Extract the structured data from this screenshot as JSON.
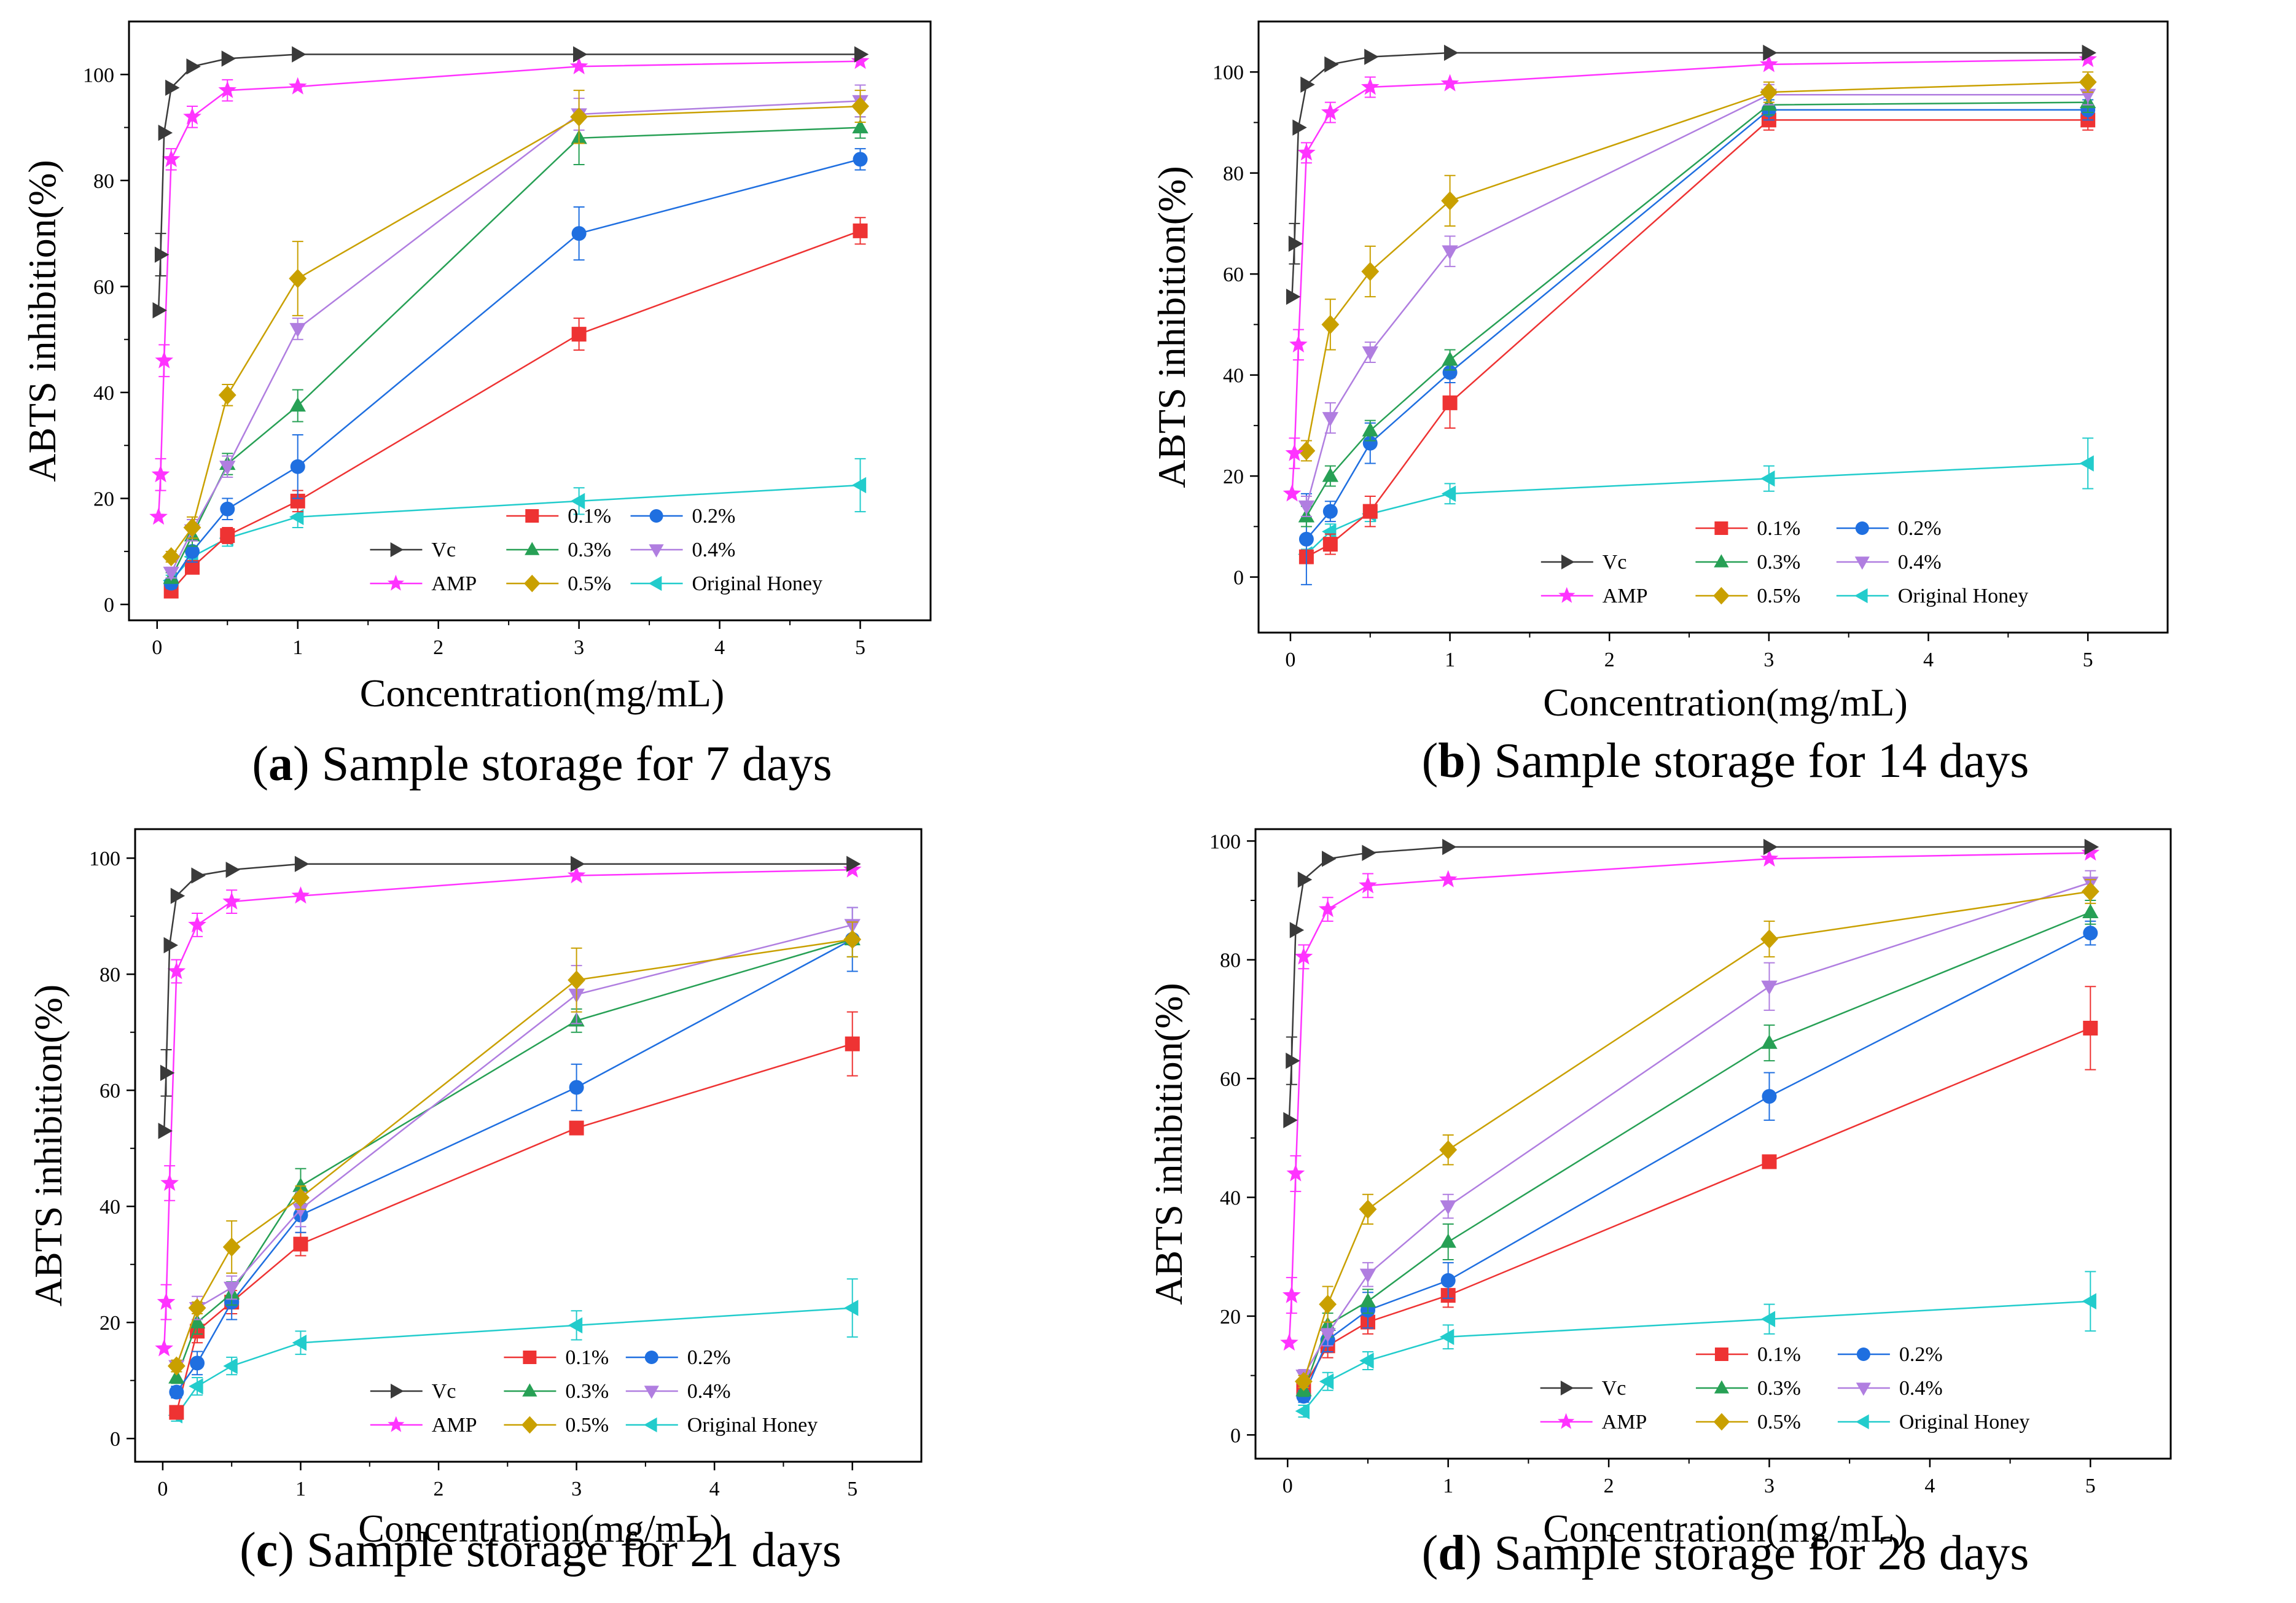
{
  "figure": {
    "legend_order": [
      {
        "label": "0.1%",
        "key": "s01"
      },
      {
        "label": "0.2%",
        "key": "s02"
      },
      {
        "label": "Vc",
        "key": "vc"
      },
      {
        "label": "0.3%",
        "key": "s03"
      },
      {
        "label": "0.4%",
        "key": "s04"
      },
      {
        "label": "AMP",
        "key": "amp"
      },
      {
        "label": "0.5%",
        "key": "s05"
      },
      {
        "label": "Original Honey",
        "key": "orig"
      }
    ],
    "series_colors": {
      "vc": "#3a3a3a",
      "amp": "#ff33ff",
      "s01": "#ee3333",
      "s02": "#1f6fe0",
      "s03": "#27a055",
      "s04": "#b07ee0",
      "s05": "#c9a000",
      "orig": "#22cccc"
    },
    "series_markers": {
      "vc": "triangle-right",
      "amp": "star",
      "s01": "square",
      "s02": "circle",
      "s03": "triangle-up",
      "s04": "triangle-down",
      "s05": "diamond",
      "orig": "triangle-left"
    }
  },
  "chart_data": [
    {
      "type": "line",
      "panel_letter": "a",
      "caption": "Sample storage for 7 days",
      "xlabel": "Concentration(mg/mL)",
      "ylabel": "ABTS inhibition(%)",
      "xlim": [
        -0.2,
        5.5
      ],
      "ylim": [
        -3,
        110
      ],
      "xticks": [
        0,
        1,
        2,
        3,
        4,
        5
      ],
      "yticks": [
        0,
        20,
        40,
        60,
        80,
        100
      ],
      "series": [
        {
          "key": "vc",
          "name": "Vc",
          "x": [
            0.01,
            0.025,
            0.05,
            0.1,
            0.25,
            0.5,
            1,
            3,
            5
          ],
          "y": [
            55.5,
            66,
            89,
            97.5,
            101.5,
            103,
            103.8,
            103.8,
            103.8
          ],
          "err": [
            0,
            4,
            0,
            0,
            0,
            0,
            0,
            0,
            0
          ]
        },
        {
          "key": "amp",
          "name": "AMP",
          "x": [
            0.01,
            0.025,
            0.05,
            0.1,
            0.25,
            0.5,
            1,
            3,
            5
          ],
          "y": [
            16.5,
            24.5,
            46,
            84,
            92,
            97,
            97.7,
            101.5,
            102.5
          ],
          "err": [
            0,
            3,
            3,
            2,
            2,
            2,
            0,
            0,
            0
          ]
        },
        {
          "key": "s01",
          "name": "0.1%",
          "x": [
            0.1,
            0.25,
            0.5,
            1,
            3,
            5
          ],
          "y": [
            2.5,
            7,
            13,
            19.5,
            51,
            70.5
          ],
          "err": [
            1,
            1,
            1.5,
            2,
            3,
            2.5
          ]
        },
        {
          "key": "s02",
          "name": "0.2%",
          "x": [
            0.1,
            0.25,
            0.5,
            1,
            3,
            5
          ],
          "y": [
            4,
            10,
            18,
            26,
            70,
            84
          ],
          "err": [
            1,
            2,
            2,
            6,
            5,
            2
          ]
        },
        {
          "key": "s03",
          "name": "0.3%",
          "x": [
            0.1,
            0.25,
            0.5,
            1,
            3,
            5
          ],
          "y": [
            5,
            13,
            26.5,
            37.5,
            88,
            90
          ],
          "err": [
            1,
            2,
            2,
            3,
            5,
            2
          ]
        },
        {
          "key": "s04",
          "name": "0.4%",
          "x": [
            0.1,
            0.25,
            0.5,
            1,
            3,
            5
          ],
          "y": [
            6,
            14,
            26,
            52,
            92.5,
            95
          ],
          "err": [
            1,
            2,
            2,
            2,
            3,
            3
          ]
        },
        {
          "key": "s05",
          "name": "0.5%",
          "x": [
            0.1,
            0.25,
            0.5,
            1,
            3,
            5
          ],
          "y": [
            9,
            14.5,
            39.5,
            61.5,
            92,
            94
          ],
          "err": [
            1,
            2,
            2,
            7,
            5,
            3
          ]
        },
        {
          "key": "orig",
          "name": "Original Honey",
          "x": [
            0.1,
            0.25,
            0.5,
            1,
            3,
            5
          ],
          "y": [
            4.5,
            9,
            12.5,
            16.5,
            19.5,
            22.5
          ],
          "err": [
            1,
            1.5,
            1.5,
            2,
            2.5,
            5
          ]
        }
      ]
    },
    {
      "type": "line",
      "panel_letter": "b",
      "caption": "Sample storage for 14 days",
      "xlabel": "Concentration(mg/mL)",
      "ylabel": "ABTS inhibition(%)",
      "xlim": [
        -0.2,
        5.5
      ],
      "ylim": [
        -11,
        110
      ],
      "xticks": [
        0,
        1,
        2,
        3,
        4,
        5
      ],
      "yticks": [
        0,
        20,
        40,
        60,
        80,
        100
      ],
      "series": [
        {
          "key": "vc",
          "name": "Vc",
          "x": [
            0.01,
            0.025,
            0.05,
            0.1,
            0.25,
            0.5,
            1,
            3,
            5
          ],
          "y": [
            55.5,
            66,
            89,
            97.5,
            101.5,
            103,
            103.8,
            103.8,
            103.8
          ],
          "err": [
            0,
            4,
            0,
            0,
            0,
            0,
            0,
            0,
            0
          ]
        },
        {
          "key": "amp",
          "name": "AMP",
          "x": [
            0.01,
            0.025,
            0.05,
            0.1,
            0.25,
            0.5,
            1,
            3,
            5
          ],
          "y": [
            16.5,
            24.5,
            46,
            84,
            92,
            97,
            97.7,
            101.5,
            102.5
          ],
          "err": [
            0,
            3,
            3,
            2,
            2,
            2,
            0,
            0,
            0
          ]
        },
        {
          "key": "s01",
          "name": "0.1%",
          "x": [
            0.1,
            0.25,
            0.5,
            1,
            3,
            5
          ],
          "y": [
            4,
            6.5,
            13,
            34.5,
            90.5,
            90.5
          ],
          "err": [
            1,
            2,
            3,
            5,
            2,
            2
          ]
        },
        {
          "key": "s02",
          "name": "0.2%",
          "x": [
            0.1,
            0.25,
            0.5,
            1,
            3,
            5
          ],
          "y": [
            7.5,
            13,
            26.5,
            40.5,
            92.5,
            92.5
          ],
          "err": [
            9,
            2,
            4,
            2,
            2,
            2
          ]
        },
        {
          "key": "s03",
          "name": "0.3%",
          "x": [
            0.1,
            0.25,
            0.5,
            1,
            3,
            5
          ],
          "y": [
            12,
            20,
            29,
            43,
            93.5,
            94
          ],
          "err": [
            2,
            2,
            2,
            2,
            2,
            2
          ]
        },
        {
          "key": "s04",
          "name": "0.4%",
          "x": [
            0.1,
            0.25,
            0.5,
            1,
            3,
            5
          ],
          "y": [
            14,
            31.5,
            44.5,
            64.5,
            95.5,
            95.5
          ],
          "err": [
            2,
            3,
            2,
            3,
            2,
            2
          ]
        },
        {
          "key": "s05",
          "name": "0.5%",
          "x": [
            0.1,
            0.25,
            0.5,
            1,
            3,
            5
          ],
          "y": [
            25,
            50,
            60.5,
            74.5,
            96,
            98
          ],
          "err": [
            2,
            5,
            5,
            5,
            2,
            2
          ]
        },
        {
          "key": "orig",
          "name": "Original Honey",
          "x": [
            0.1,
            0.25,
            0.5,
            1,
            3,
            5
          ],
          "y": [
            4.5,
            9,
            12.5,
            16.5,
            19.5,
            22.5
          ],
          "err": [
            1,
            1.5,
            1.5,
            2,
            2.5,
            5
          ]
        }
      ]
    },
    {
      "type": "line",
      "panel_letter": "c",
      "caption": "Sample storage for 21 days",
      "xlabel": "Concentration(mg/mL)",
      "ylabel": "ABTS inhibition(%)",
      "xlim": [
        -0.2,
        5.5
      ],
      "ylim": [
        -4,
        105
      ],
      "xticks": [
        0,
        1,
        2,
        3,
        4,
        5
      ],
      "yticks": [
        0,
        20,
        40,
        60,
        80,
        100
      ],
      "series": [
        {
          "key": "vc",
          "name": "Vc",
          "x": [
            0.01,
            0.025,
            0.05,
            0.1,
            0.25,
            0.5,
            1,
            3,
            5
          ],
          "y": [
            53,
            63,
            85,
            93.5,
            97,
            98,
            99,
            99,
            99
          ],
          "err": [
            0,
            4,
            0,
            0,
            0,
            0,
            0,
            0,
            0
          ]
        },
        {
          "key": "amp",
          "name": "AMP",
          "x": [
            0.01,
            0.025,
            0.05,
            0.1,
            0.25,
            0.5,
            1,
            3,
            5
          ],
          "y": [
            15.5,
            23.5,
            44,
            80.5,
            88.5,
            92.5,
            93.5,
            97,
            98
          ],
          "err": [
            0,
            3,
            3,
            2,
            2,
            2,
            0,
            0,
            0
          ]
        },
        {
          "key": "s01",
          "name": "0.1%",
          "x": [
            0.1,
            0.25,
            0.5,
            1,
            3,
            5
          ],
          "y": [
            4.5,
            18.5,
            23.5,
            33.5,
            53.5,
            68
          ],
          "err": [
            1,
            2,
            2,
            2,
            1,
            5.5
          ]
        },
        {
          "key": "s02",
          "name": "0.2%",
          "x": [
            0.1,
            0.25,
            0.5,
            1,
            3,
            5
          ],
          "y": [
            8,
            13,
            23.5,
            38.5,
            60.5,
            86
          ],
          "err": [
            1,
            2,
            3,
            3,
            4,
            5.5
          ]
        },
        {
          "key": "s03",
          "name": "0.3%",
          "x": [
            0.1,
            0.25,
            0.5,
            1,
            3,
            5
          ],
          "y": [
            10.5,
            20,
            25,
            43.5,
            72,
            86
          ],
          "err": [
            1,
            2,
            2,
            3,
            2,
            3
          ]
        },
        {
          "key": "s04",
          "name": "0.4%",
          "x": [
            0.1,
            0.25,
            0.5,
            1,
            3,
            5
          ],
          "y": [
            12.5,
            22.5,
            26,
            39.5,
            76.5,
            88.5
          ],
          "err": [
            1,
            2,
            2,
            3,
            5,
            3
          ]
        },
        {
          "key": "s05",
          "name": "0.5%",
          "x": [
            0.1,
            0.25,
            0.5,
            1,
            3,
            5
          ],
          "y": [
            12.5,
            22.5,
            33,
            41.5,
            79,
            86
          ],
          "err": [
            1,
            1,
            4.5,
            2,
            5.5,
            3
          ]
        },
        {
          "key": "orig",
          "name": "Original Honey",
          "x": [
            0.1,
            0.25,
            0.5,
            1,
            3,
            5
          ],
          "y": [
            4,
            9,
            12.5,
            16.5,
            19.5,
            22.5
          ],
          "err": [
            1,
            1.5,
            1.5,
            2,
            2.5,
            5
          ]
        }
      ]
    },
    {
      "type": "line",
      "panel_letter": "d",
      "caption": "Sample storage for 28 days",
      "xlabel": "Concentration(mg/mL)",
      "ylabel": "ABTS inhibition(%)",
      "xlim": [
        -0.2,
        5.5
      ],
      "ylim": [
        -4,
        102
      ],
      "xticks": [
        0,
        1,
        2,
        3,
        4,
        5
      ],
      "yticks": [
        0,
        20,
        40,
        60,
        80,
        100
      ],
      "series": [
        {
          "key": "vc",
          "name": "Vc",
          "x": [
            0.01,
            0.025,
            0.05,
            0.1,
            0.25,
            0.5,
            1,
            3,
            5
          ],
          "y": [
            53,
            63,
            85,
            93.5,
            97,
            98,
            99,
            99,
            99
          ],
          "err": [
            0,
            4,
            0,
            0,
            0,
            0,
            0,
            0,
            0
          ]
        },
        {
          "key": "amp",
          "name": "AMP",
          "x": [
            0.01,
            0.025,
            0.05,
            0.1,
            0.25,
            0.5,
            1,
            3,
            5
          ],
          "y": [
            15.5,
            23.5,
            44,
            80.5,
            88.5,
            92.5,
            93.5,
            97,
            98
          ],
          "err": [
            0,
            3,
            3,
            2,
            2,
            2,
            0,
            0,
            0
          ]
        },
        {
          "key": "s01",
          "name": "0.1%",
          "x": [
            0.1,
            0.25,
            0.5,
            1,
            3,
            5
          ],
          "y": [
            8,
            15,
            19,
            23.5,
            46,
            68.5
          ],
          "err": [
            1,
            2,
            2,
            2,
            1,
            7
          ]
        },
        {
          "key": "s02",
          "name": "0.2%",
          "x": [
            0.1,
            0.25,
            0.5,
            1,
            3,
            5
          ],
          "y": [
            6.5,
            16,
            21,
            26,
            57,
            84.5
          ],
          "err": [
            1,
            2,
            3,
            3,
            4,
            2
          ]
        },
        {
          "key": "s03",
          "name": "0.3%",
          "x": [
            0.1,
            0.25,
            0.5,
            1,
            3,
            5
          ],
          "y": [
            7.5,
            18.5,
            22.5,
            32.5,
            66,
            88
          ],
          "err": [
            1,
            2,
            2,
            3,
            3,
            2
          ]
        },
        {
          "key": "s04",
          "name": "0.4%",
          "x": [
            0.1,
            0.25,
            0.5,
            1,
            3,
            5
          ],
          "y": [
            10,
            17,
            27,
            38.5,
            75.5,
            93
          ],
          "err": [
            1,
            2,
            2,
            2,
            4,
            2
          ]
        },
        {
          "key": "s05",
          "name": "0.5%",
          "x": [
            0.1,
            0.25,
            0.5,
            1,
            3,
            5
          ],
          "y": [
            9,
            22,
            38,
            48,
            83.5,
            91.5
          ],
          "err": [
            1,
            3,
            2.5,
            2.5,
            3,
            2
          ]
        },
        {
          "key": "orig",
          "name": "Original Honey",
          "x": [
            0.1,
            0.25,
            0.5,
            1,
            3,
            5
          ],
          "y": [
            4,
            9,
            12.5,
            16.5,
            19.5,
            22.5
          ],
          "err": [
            1,
            1.5,
            1.5,
            2,
            2.5,
            5
          ]
        }
      ]
    }
  ]
}
